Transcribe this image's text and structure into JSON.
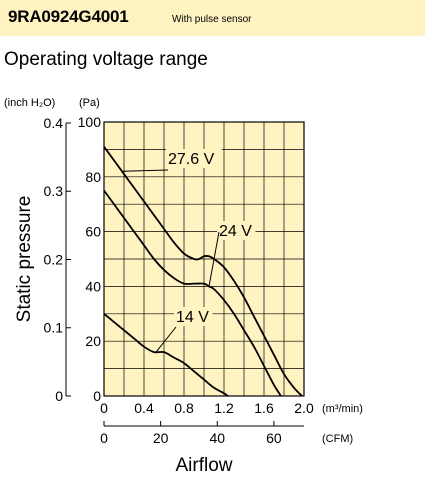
{
  "header": {
    "model": "9RA0924G4001",
    "note": "With pulse sensor",
    "background": "#fff3c2"
  },
  "section_title": "Operating voltage range",
  "chart_data": {
    "type": "line",
    "plot_background": "#fff3c2",
    "grid": true,
    "xlabel": "Airflow",
    "ylabel": "Static pressure",
    "x_unit": "(m³/min)",
    "x2_unit": "(CFM)",
    "y_unit": "(Pa)",
    "y2_unit": "(inch H₂O)",
    "xlim": [
      0,
      2.0
    ],
    "ylim": [
      0,
      100
    ],
    "x_ticks": [
      "0",
      "0.4",
      "0.8",
      "1.2",
      "1.6",
      "2.0"
    ],
    "x_tick_values": [
      0,
      0.4,
      0.8,
      1.2,
      1.6,
      2.0
    ],
    "x2_ticks": [
      "0",
      "20",
      "40",
      "60"
    ],
    "x2_tick_values": [
      0,
      20,
      40,
      60
    ],
    "y_ticks": [
      "0",
      "20",
      "40",
      "60",
      "80",
      "100"
    ],
    "y_tick_values": [
      0,
      20,
      40,
      60,
      80,
      100
    ],
    "y2_ticks": [
      "0",
      "0.1",
      "0.2",
      "0.3",
      "0.4"
    ],
    "y2_tick_values": [
      0,
      0.1,
      0.2,
      0.3,
      0.4
    ],
    "series": [
      {
        "name": "27.6 V",
        "x": [
          0,
          0.1,
          0.2,
          0.3,
          0.4,
          0.5,
          0.6,
          0.7,
          0.8,
          0.9,
          0.95,
          1.0,
          1.05,
          1.1,
          1.2,
          1.3,
          1.4,
          1.5,
          1.6,
          1.7,
          1.8,
          1.9,
          1.98
        ],
        "y": [
          91,
          86,
          81,
          76,
          71,
          66,
          61,
          56,
          52,
          50,
          50,
          51,
          51,
          50,
          47,
          42,
          36,
          29,
          22,
          15,
          8,
          3,
          0
        ]
      },
      {
        "name": "24 V",
        "x": [
          0,
          0.1,
          0.2,
          0.3,
          0.4,
          0.5,
          0.6,
          0.7,
          0.8,
          0.9,
          1.0,
          1.05,
          1.1,
          1.2,
          1.3,
          1.4,
          1.5,
          1.6,
          1.7,
          1.77
        ],
        "y": [
          75,
          70,
          65,
          60,
          55,
          50,
          46,
          43,
          41,
          41,
          41,
          40,
          39,
          35,
          30,
          24,
          18,
          11,
          4,
          0
        ]
      },
      {
        "name": "14 V",
        "x": [
          0,
          0.1,
          0.2,
          0.3,
          0.4,
          0.5,
          0.6,
          0.7,
          0.8,
          0.9,
          1.0,
          1.1,
          1.2,
          1.24
        ],
        "y": [
          30,
          27,
          24,
          21,
          18,
          16,
          16,
          14,
          12,
          9,
          6,
          3,
          1,
          0
        ]
      }
    ],
    "labels": [
      {
        "text": "27.6 V",
        "series": 0,
        "at_x": 0.18
      },
      {
        "text": "24 V",
        "series": 1,
        "at_x": 1.05
      },
      {
        "text": "14 V",
        "series": 2,
        "at_x": 0.52
      }
    ]
  }
}
